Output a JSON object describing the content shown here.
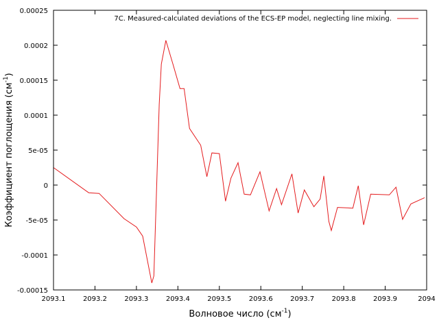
{
  "chart_data": {
    "type": "line",
    "title": "",
    "xlabel": "Волновое число (см",
    "xlabel_sup": "-1",
    "xlabel_suffix": ")",
    "ylabel": "Коэффициент поглощения (см",
    "ylabel_sup": "-1",
    "ylabel_suffix": ")",
    "xlim": [
      2093.1,
      2094.0
    ],
    "ylim": [
      -0.00015,
      0.00025
    ],
    "x_ticks": [
      2093.1,
      2093.2,
      2093.3,
      2093.4,
      2093.5,
      2093.6,
      2093.7,
      2093.8,
      2093.9,
      2094.0
    ],
    "x_tick_labels": [
      "2093.1",
      "2093.2",
      "2093.3",
      "2093.4",
      "2093.5",
      "2093.6",
      "2093.7",
      "2093.8",
      "2093.9",
      "2094"
    ],
    "y_ticks": [
      -0.00015,
      -0.0001,
      -5e-05,
      0,
      5e-05,
      0.0001,
      0.00015,
      0.0002,
      0.00025
    ],
    "y_tick_labels": [
      "-0.00015",
      "-0.0001",
      "-5e-05",
      "0",
      "5e-05",
      "0.0001",
      "0.00015",
      "0.0002",
      "0.00025"
    ],
    "grid": false,
    "legend_position": "top-right",
    "series": [
      {
        "name": "7C. Measured-calculated deviations of the ECS-EP model, neglecting line mixing.",
        "color": "#e41a1c",
        "x": [
          2093.1,
          2093.185,
          2093.21,
          2093.27,
          2093.3,
          2093.315,
          2093.337,
          2093.342,
          2093.355,
          2093.36,
          2093.371,
          2093.388,
          2093.405,
          2093.415,
          2093.428,
          2093.455,
          2093.47,
          2093.482,
          2093.5,
          2093.515,
          2093.528,
          2093.545,
          2093.56,
          2093.575,
          2093.598,
          2093.62,
          2093.638,
          2093.65,
          2093.675,
          2093.69,
          2093.705,
          2093.728,
          2093.743,
          2093.752,
          2093.764,
          2093.77,
          2093.785,
          2093.822,
          2093.835,
          2093.848,
          2093.865,
          2093.91,
          2093.926,
          2093.942,
          2093.962,
          2093.995
        ],
        "y": [
          2.5e-05,
          -1.1e-05,
          -1.2e-05,
          -4.8e-05,
          -6e-05,
          -7.3e-05,
          -0.00014,
          -0.00013,
          0.000115,
          0.000173,
          0.000207,
          0.000173,
          0.000138,
          0.000138,
          8.1e-05,
          5.7e-05,
          1.2e-05,
          4.6e-05,
          4.5e-05,
          -2.3e-05,
          1e-05,
          3.2e-05,
          -1.3e-05,
          -1.4e-05,
          1.9e-05,
          -3.7e-05,
          -5e-06,
          -2.8e-05,
          1.6e-05,
          -4e-05,
          -7e-06,
          -3.1e-05,
          -2e-05,
          1.3e-05,
          -5.2e-05,
          -6.5e-05,
          -3.2e-05,
          -3.3e-05,
          -1e-06,
          -5.7e-05,
          -1.3e-05,
          -1.4e-05,
          -3e-06,
          -4.9e-05,
          -2.7e-05,
          -1.8e-05
        ]
      }
    ]
  }
}
